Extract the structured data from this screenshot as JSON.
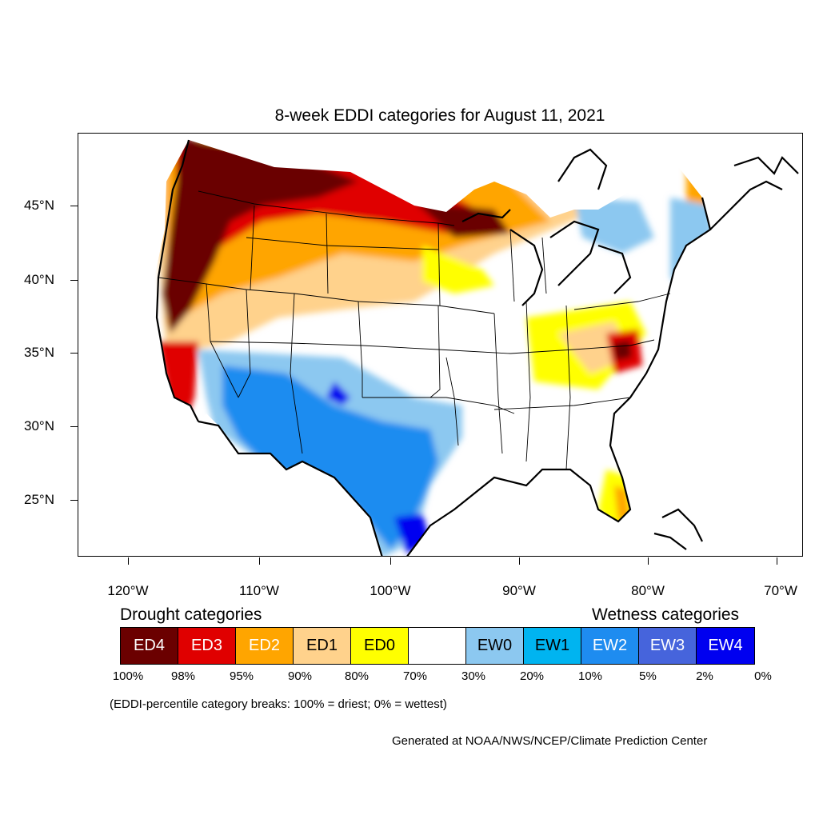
{
  "title": "8-week EDDI categories for August 11, 2021",
  "map": {
    "latitude_labels": [
      "45°N",
      "40°N",
      "35°N",
      "30°N",
      "25°N"
    ],
    "longitude_labels": [
      "120°W",
      "110°W",
      "100°W",
      "90°W",
      "80°W",
      "70°W"
    ]
  },
  "legend": {
    "drought_heading": "Drought categories",
    "wetness_heading": "Wetness categories",
    "categories": [
      {
        "label": "ED4",
        "color": "#6b0000",
        "text_color": "#ffffff"
      },
      {
        "label": "ED3",
        "color": "#e00000",
        "text_color": "#ffffff"
      },
      {
        "label": "ED2",
        "color": "#ffa500",
        "text_color": "#ffffff"
      },
      {
        "label": "ED1",
        "color": "#ffd28c",
        "text_color": "#000000"
      },
      {
        "label": "ED0",
        "color": "#ffff00",
        "text_color": "#000000"
      },
      {
        "label": "",
        "color": "#ffffff",
        "text_color": "#000000"
      },
      {
        "label": "EW0",
        "color": "#8cc8f0",
        "text_color": "#000000"
      },
      {
        "label": "EW1",
        "color": "#00b4f0",
        "text_color": "#000000"
      },
      {
        "label": "EW2",
        "color": "#1e8cf0",
        "text_color": "#ffffff"
      },
      {
        "label": "EW3",
        "color": "#4664dc",
        "text_color": "#ffffff"
      },
      {
        "label": "EW4",
        "color": "#0000f0",
        "text_color": "#ffffff"
      }
    ],
    "breaks": [
      "100%",
      "98%",
      "95%",
      "90%",
      "80%",
      "70%",
      "30%",
      "20%",
      "10%",
      "5%",
      "2%",
      "0%"
    ],
    "note": "(EDDI-percentile category breaks: 100% = driest; 0% = wettest)"
  },
  "credit": "Generated at NOAA/NWS/NCEP/Climate Prediction Center"
}
